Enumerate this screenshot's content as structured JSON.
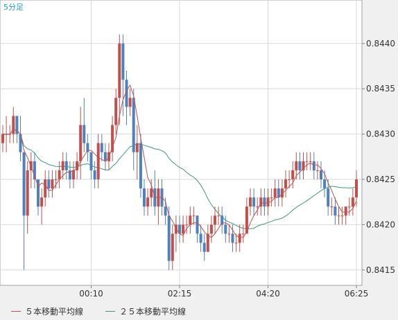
{
  "chart_data": {
    "type": "candlestick",
    "title": "5分足",
    "x_tick_labels": [
      "00:10",
      "02:15",
      "04:20",
      "06:25"
    ],
    "y_tick_labels": [
      "0.8440",
      "0.8435",
      "0.8430",
      "0.8425",
      "0.8420",
      "0.8415"
    ],
    "y_ticks": [
      0.844,
      0.8435,
      0.843,
      0.8425,
      0.842,
      0.8415
    ],
    "ylim": [
      0.84133,
      0.84448
    ],
    "bar_count": 101,
    "up_color": "#c0504d",
    "down_color": "#4f81bd",
    "candles": [
      [
        0.8429,
        0.8431,
        0.8428,
        0.843
      ],
      [
        0.843,
        0.8432,
        0.8428,
        0.843
      ],
      [
        0.843,
        0.8431,
        0.8429,
        0.843
      ],
      [
        0.843,
        0.8433,
        0.8429,
        0.8432
      ],
      [
        0.8432,
        0.8432,
        0.8429,
        0.843
      ],
      [
        0.843,
        0.8432,
        0.8427,
        0.8428
      ],
      [
        0.8428,
        0.8428,
        0.8415,
        0.8421
      ],
      [
        0.8421,
        0.8427,
        0.8419,
        0.8426
      ],
      [
        0.8426,
        0.8428,
        0.8424,
        0.8427
      ],
      [
        0.8427,
        0.8428,
        0.8424,
        0.8425
      ],
      [
        0.8425,
        0.8425,
        0.8421,
        0.8422
      ],
      [
        0.8422,
        0.8424,
        0.842,
        0.8423
      ],
      [
        0.8423,
        0.8426,
        0.8422,
        0.8425
      ],
      [
        0.8425,
        0.8426,
        0.8423,
        0.8424
      ],
      [
        0.8424,
        0.8426,
        0.8423,
        0.8425
      ],
      [
        0.8425,
        0.8426,
        0.8424,
        0.8425
      ],
      [
        0.8425,
        0.8427,
        0.8424,
        0.8426
      ],
      [
        0.8426,
        0.8428,
        0.8425,
        0.8427
      ],
      [
        0.8427,
        0.8428,
        0.8425,
        0.8426
      ],
      [
        0.8426,
        0.8427,
        0.8424,
        0.8425
      ],
      [
        0.8425,
        0.8427,
        0.8424,
        0.8426
      ],
      [
        0.8426,
        0.8428,
        0.8425,
        0.8427
      ],
      [
        0.8427,
        0.8433,
        0.8425,
        0.8431
      ],
      [
        0.8431,
        0.8434,
        0.8428,
        0.8429
      ],
      [
        0.8429,
        0.843,
        0.8427,
        0.8428
      ],
      [
        0.8428,
        0.8428,
        0.8425,
        0.8426
      ],
      [
        0.8426,
        0.8427,
        0.8424,
        0.8425
      ],
      [
        0.8425,
        0.843,
        0.8424,
        0.8429
      ],
      [
        0.8429,
        0.843,
        0.8427,
        0.8428
      ],
      [
        0.8428,
        0.8429,
        0.8426,
        0.8427
      ],
      [
        0.8427,
        0.8429,
        0.8426,
        0.8428
      ],
      [
        0.8428,
        0.8432,
        0.8427,
        0.8431
      ],
      [
        0.8431,
        0.8435,
        0.843,
        0.8434
      ],
      [
        0.8434,
        0.8441,
        0.8431,
        0.844
      ],
      [
        0.844,
        0.8441,
        0.8432,
        0.8436
      ],
      [
        0.8436,
        0.8437,
        0.8431,
        0.8433
      ],
      [
        0.8433,
        0.8435,
        0.8432,
        0.8434
      ],
      [
        0.8434,
        0.8435,
        0.8426,
        0.8428
      ],
      [
        0.8428,
        0.8431,
        0.8425,
        0.8429
      ],
      [
        0.8429,
        0.843,
        0.8423,
        0.8424
      ],
      [
        0.8424,
        0.8425,
        0.8421,
        0.8422
      ],
      [
        0.8422,
        0.8424,
        0.8421,
        0.8423
      ],
      [
        0.8423,
        0.8425,
        0.8422,
        0.8424
      ],
      [
        0.8424,
        0.8426,
        0.8421,
        0.8422
      ],
      [
        0.8422,
        0.8425,
        0.842,
        0.8424
      ],
      [
        0.8424,
        0.8425,
        0.8421,
        0.8422
      ],
      [
        0.8422,
        0.8423,
        0.842,
        0.8421
      ],
      [
        0.8421,
        0.8422,
        0.8415,
        0.8416
      ],
      [
        0.8416,
        0.842,
        0.8415,
        0.8419
      ],
      [
        0.8419,
        0.8421,
        0.8417,
        0.842
      ],
      [
        0.842,
        0.8421,
        0.8418,
        0.8419
      ],
      [
        0.8419,
        0.8421,
        0.8418,
        0.842
      ],
      [
        0.842,
        0.8421,
        0.8419,
        0.842
      ],
      [
        0.842,
        0.8422,
        0.8419,
        0.8421
      ],
      [
        0.8421,
        0.8422,
        0.842,
        0.8421
      ],
      [
        0.8421,
        0.8421,
        0.8418,
        0.8419
      ],
      [
        0.8419,
        0.842,
        0.8417,
        0.8418
      ],
      [
        0.8418,
        0.8419,
        0.8416,
        0.8417
      ],
      [
        0.8417,
        0.842,
        0.8417,
        0.8419
      ],
      [
        0.8419,
        0.8421,
        0.8418,
        0.842
      ],
      [
        0.842,
        0.8422,
        0.8419,
        0.8421
      ],
      [
        0.8421,
        0.8422,
        0.842,
        0.8421
      ],
      [
        0.8421,
        0.8422,
        0.8419,
        0.842
      ],
      [
        0.842,
        0.8421,
        0.8418,
        0.8419
      ],
      [
        0.8419,
        0.842,
        0.8418,
        0.8419
      ],
      [
        0.8419,
        0.842,
        0.8417,
        0.8418
      ],
      [
        0.8418,
        0.8419,
        0.8417,
        0.8418
      ],
      [
        0.8418,
        0.842,
        0.8417,
        0.8419
      ],
      [
        0.8419,
        0.842,
        0.8418,
        0.8419
      ],
      [
        0.8419,
        0.8423,
        0.8419,
        0.8422
      ],
      [
        0.8422,
        0.8424,
        0.8421,
        0.8423
      ],
      [
        0.8423,
        0.8424,
        0.8421,
        0.8422
      ],
      [
        0.8422,
        0.8423,
        0.8421,
        0.8422
      ],
      [
        0.8422,
        0.8424,
        0.8421,
        0.8423
      ],
      [
        0.8423,
        0.8424,
        0.8421,
        0.8422
      ],
      [
        0.8422,
        0.8424,
        0.8421,
        0.8423
      ],
      [
        0.8423,
        0.8424,
        0.8422,
        0.8423
      ],
      [
        0.8423,
        0.8425,
        0.8422,
        0.8424
      ],
      [
        0.8424,
        0.8425,
        0.8422,
        0.8423
      ],
      [
        0.8423,
        0.8425,
        0.8422,
        0.8424
      ],
      [
        0.8424,
        0.8426,
        0.8423,
        0.8425
      ],
      [
        0.8425,
        0.8426,
        0.8424,
        0.8425
      ],
      [
        0.8425,
        0.8427,
        0.8424,
        0.8426
      ],
      [
        0.8426,
        0.8428,
        0.8425,
        0.8427
      ],
      [
        0.8427,
        0.8428,
        0.8425,
        0.8426
      ],
      [
        0.8426,
        0.8428,
        0.8425,
        0.8427
      ],
      [
        0.8427,
        0.8428,
        0.8426,
        0.8427
      ],
      [
        0.8427,
        0.8428,
        0.8426,
        0.8427
      ],
      [
        0.8427,
        0.8428,
        0.8425,
        0.8426
      ],
      [
        0.8426,
        0.8427,
        0.8425,
        0.8426
      ],
      [
        0.8426,
        0.8427,
        0.8424,
        0.8425
      ],
      [
        0.8425,
        0.8426,
        0.8423,
        0.8424
      ],
      [
        0.8424,
        0.8425,
        0.8421,
        0.8422
      ],
      [
        0.8422,
        0.8423,
        0.8421,
        0.8422
      ],
      [
        0.8422,
        0.8423,
        0.842,
        0.8421
      ],
      [
        0.8421,
        0.8422,
        0.842,
        0.8421
      ],
      [
        0.8421,
        0.8422,
        0.842,
        0.8421
      ],
      [
        0.8421,
        0.8422,
        0.842,
        0.8422
      ],
      [
        0.8422,
        0.8423,
        0.8421,
        0.8422
      ],
      [
        0.8422,
        0.8424,
        0.8421,
        0.8423
      ],
      [
        0.8423,
        0.8426,
        0.8422,
        0.8425
      ]
    ],
    "series": [
      {
        "name": "５本移動平均線",
        "color": "#c0504d",
        "period": 5
      },
      {
        "name": "２５本移動平均線",
        "color": "#3a9a78",
        "period": 25
      }
    ],
    "grid": true,
    "legend_position": "bottom"
  }
}
